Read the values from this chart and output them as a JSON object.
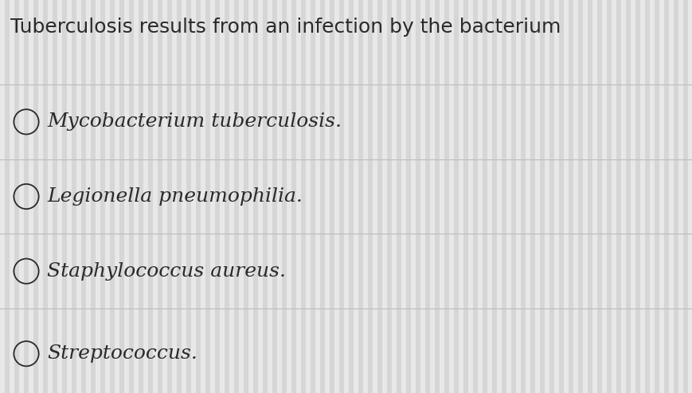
{
  "title": "Tuberculosis results from an infection by the bacterium",
  "options": [
    "Mycobacterium tuberculosis.",
    "Legionella pneumophilia.",
    "Staphylococcus aureus.",
    "Streptococcus."
  ],
  "background_color": "#e8e8e8",
  "title_color": "#2a2a2a",
  "option_color": "#2a2a2a",
  "line_color": "#c0bcb8",
  "circle_color": "#2a2a2a",
  "title_fontsize": 18,
  "option_fontsize": 18,
  "fig_width": 8.69,
  "fig_height": 4.93,
  "stripe_color_light": "#e9e9e9",
  "stripe_color_dark": "#d8d8d8"
}
